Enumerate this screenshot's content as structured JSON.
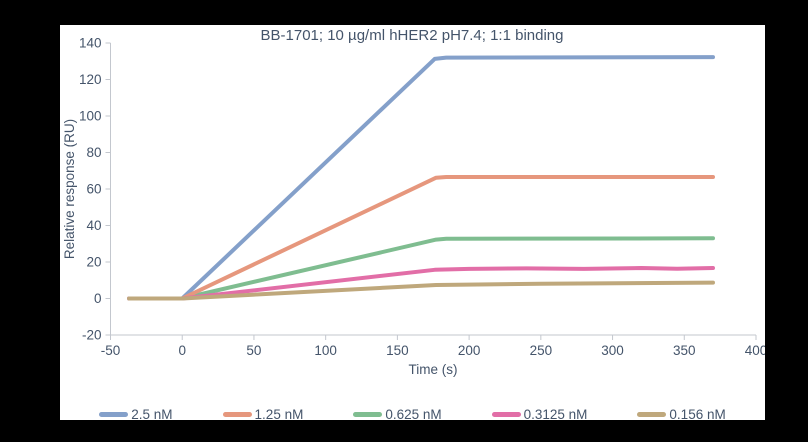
{
  "window": {
    "background_color": "#000000",
    "panel_color": "#ffffff"
  },
  "chart_data": {
    "type": "line",
    "title": "BB-1701; 10 µg/ml hHER2 pH7.4; 1:1 binding",
    "xlabel": "Time (s)",
    "ylabel": "Relative response (RU)",
    "xlim": [
      -50,
      400
    ],
    "ylim": [
      -20,
      140
    ],
    "xticks": [
      -50,
      0,
      50,
      100,
      150,
      200,
      250,
      300,
      350,
      400
    ],
    "yticks": [
      -20,
      0,
      20,
      40,
      60,
      80,
      100,
      120,
      140
    ],
    "grid": false,
    "legend_position": "bottom",
    "axis_color": "#c3c7ce",
    "text_color": "#44546a",
    "line_width": 4,
    "series": [
      {
        "name": "2.5 nM",
        "color": "#84a0ca",
        "points": [
          [
            -37,
            0
          ],
          [
            0,
            0
          ],
          [
            176,
            131.3
          ],
          [
            184,
            132.0
          ],
          [
            370,
            132.3
          ]
        ]
      },
      {
        "name": "1.25 nM",
        "color": "#e6977d",
        "points": [
          [
            -37,
            0
          ],
          [
            0,
            0
          ],
          [
            177,
            66.2
          ],
          [
            184,
            66.6
          ],
          [
            370,
            66.6
          ]
        ]
      },
      {
        "name": "0.625 nM",
        "color": "#7fbd90",
        "points": [
          [
            -37,
            0
          ],
          [
            0,
            0
          ],
          [
            177,
            32.3
          ],
          [
            184,
            32.7
          ],
          [
            370,
            33.0
          ]
        ]
      },
      {
        "name": "0.3125 nM",
        "color": "#e26ea7",
        "points": [
          [
            -37,
            0
          ],
          [
            0,
            0
          ],
          [
            176,
            15.7
          ],
          [
            200,
            16.2
          ],
          [
            240,
            16.5
          ],
          [
            280,
            16.2
          ],
          [
            320,
            16.7
          ],
          [
            345,
            16.3
          ],
          [
            370,
            16.7
          ]
        ]
      },
      {
        "name": "0.156 nM",
        "color": "#bfa87c",
        "points": [
          [
            -37,
            0
          ],
          [
            0,
            0
          ],
          [
            177,
            7.4
          ],
          [
            250,
            8.1
          ],
          [
            370,
            8.7
          ]
        ]
      }
    ]
  }
}
